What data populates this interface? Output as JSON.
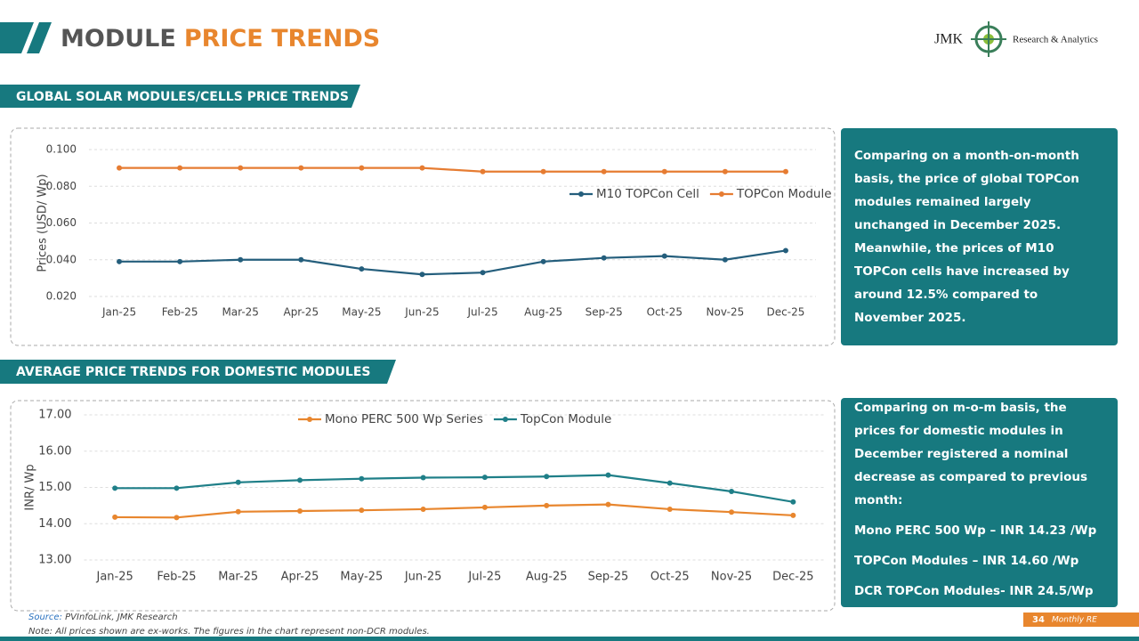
{
  "header": {
    "title_part1": "MODULE",
    "title_part2": "PRICE TRENDS",
    "logo_left": "JMK",
    "logo_right": "Research & Analytics"
  },
  "sections": [
    {
      "heading": "GLOBAL SOLAR MODULES/CELLS PRICE TRENDS",
      "commentary": [
        "Comparing on a month-on-month basis, the price of global TOPCon modules remained largely unchanged in December 2025. Meanwhile, the prices of M10 TOPCon cells have increased by around 12.5% compared to November 2025."
      ]
    },
    {
      "heading": "AVERAGE PRICE TRENDS FOR DOMESTIC MODULES",
      "commentary": [
        "Comparing on m-o-m basis, the prices for domestic modules in December registered a nominal decrease as compared to previous month:",
        "Mono PERC 500 Wp – INR 14.23 /Wp",
        "TOPCon Modules – INR 14.60 /Wp",
        "DCR TOPCon Modules- INR 24.5/Wp"
      ]
    }
  ],
  "chart_data": [
    {
      "type": "line",
      "ylabel": "Prices (USD/ Wp)",
      "categories": [
        "Jan-25",
        "Feb-25",
        "Mar-25",
        "Apr-25",
        "May-25",
        "Jun-25",
        "Jul-25",
        "Aug-25",
        "Sep-25",
        "Oct-25",
        "Nov-25",
        "Dec-25"
      ],
      "series": [
        {
          "name": "M10 TOPCon Cell",
          "color": "#245e7c",
          "values": [
            0.039,
            0.039,
            0.04,
            0.04,
            0.035,
            0.032,
            0.033,
            0.039,
            0.041,
            0.042,
            0.04,
            0.045
          ]
        },
        {
          "name": "TOPCon Module",
          "color": "#e67c32",
          "values": [
            0.09,
            0.09,
            0.09,
            0.09,
            0.09,
            0.09,
            0.088,
            0.088,
            0.088,
            0.088,
            0.088,
            0.088
          ]
        }
      ],
      "ylim": [
        0.02,
        0.1
      ],
      "yticks": [
        {
          "value": 0.02,
          "label": "0.020"
        },
        {
          "value": 0.04,
          "label": "0.040"
        },
        {
          "value": 0.06,
          "label": "0.060"
        },
        {
          "value": 0.08,
          "label": "0.080"
        },
        {
          "value": 0.1,
          "label": "0.100"
        }
      ],
      "grid": true,
      "legend": "upper right"
    },
    {
      "type": "line",
      "ylabel": "INR/ Wp",
      "categories": [
        "Jan-25",
        "Feb-25",
        "Mar-25",
        "Apr-25",
        "May-25",
        "Jun-25",
        "Jul-25",
        "Aug-25",
        "Sep-25",
        "Oct-25",
        "Nov-25",
        "Dec-25"
      ],
      "series": [
        {
          "name": "Mono PERC 500 Wp Series",
          "color": "#e8862e",
          "values": [
            14.18,
            14.17,
            14.33,
            14.35,
            14.37,
            14.4,
            14.45,
            14.5,
            14.53,
            14.4,
            14.32,
            14.23
          ]
        },
        {
          "name": "TopCon Module",
          "color": "#1f7f88",
          "values": [
            14.98,
            14.98,
            15.14,
            15.2,
            15.24,
            15.27,
            15.28,
            15.3,
            15.34,
            15.12,
            14.89,
            14.6
          ]
        }
      ],
      "ylim": [
        13,
        17
      ],
      "yticks": [
        {
          "value": 13,
          "label": "13.00"
        },
        {
          "value": 14,
          "label": "14.00"
        },
        {
          "value": 15,
          "label": "15.00"
        },
        {
          "value": 16,
          "label": "16.00"
        },
        {
          "value": 17,
          "label": "17.00"
        }
      ],
      "grid": true,
      "legend": "top"
    }
  ],
  "footer": {
    "source_label": "Source:",
    "source": "PVInfoLink, JMK Research",
    "note": "Note: All prices shown are ex-works. The figures in the chart represent non-DCR modules.",
    "page": "34",
    "publication": "Monthly RE"
  }
}
